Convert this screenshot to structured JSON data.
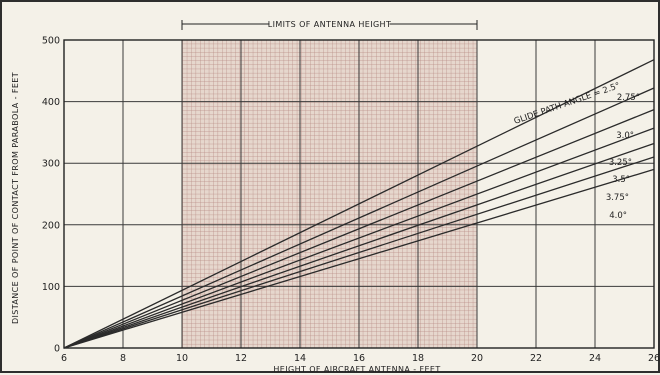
{
  "chart_data": {
    "type": "line",
    "xlabel": "HEIGHT OF AIRCRAFT ANTENNA - FEET",
    "ylabel": "DISTANCE OF POINT OF CONTACT FROM PARABOLA - FEET",
    "xlim": [
      6,
      26
    ],
    "ylim": [
      0,
      500
    ],
    "x_ticks": [
      6,
      8,
      10,
      12,
      14,
      16,
      18,
      20,
      22,
      24,
      26
    ],
    "y_ticks": [
      0,
      100,
      200,
      300,
      400,
      500
    ],
    "grid": true,
    "annotation": {
      "text": "LIMITS OF ANTENNA HEIGHT",
      "x_range": [
        10,
        20
      ]
    },
    "series": [
      {
        "name": "GLIDE PATH ANGLE = 2.5°",
        "x": [
          6,
          26
        ],
        "y": [
          0,
          468
        ]
      },
      {
        "name": "2.75°",
        "x": [
          6,
          26
        ],
        "y": [
          0,
          422
        ]
      },
      {
        "name": "3.0°",
        "x": [
          6,
          26
        ],
        "y": [
          0,
          387
        ]
      },
      {
        "name": "3.25°",
        "x": [
          6,
          26
        ],
        "y": [
          0,
          357
        ]
      },
      {
        "name": "3.5°",
        "x": [
          6,
          26
        ],
        "y": [
          0,
          332
        ]
      },
      {
        "name": "3.75°",
        "x": [
          6,
          26
        ],
        "y": [
          0,
          310
        ]
      },
      {
        "name": "4.0°",
        "x": [
          6,
          26
        ],
        "y": [
          0,
          290
        ]
      }
    ]
  }
}
